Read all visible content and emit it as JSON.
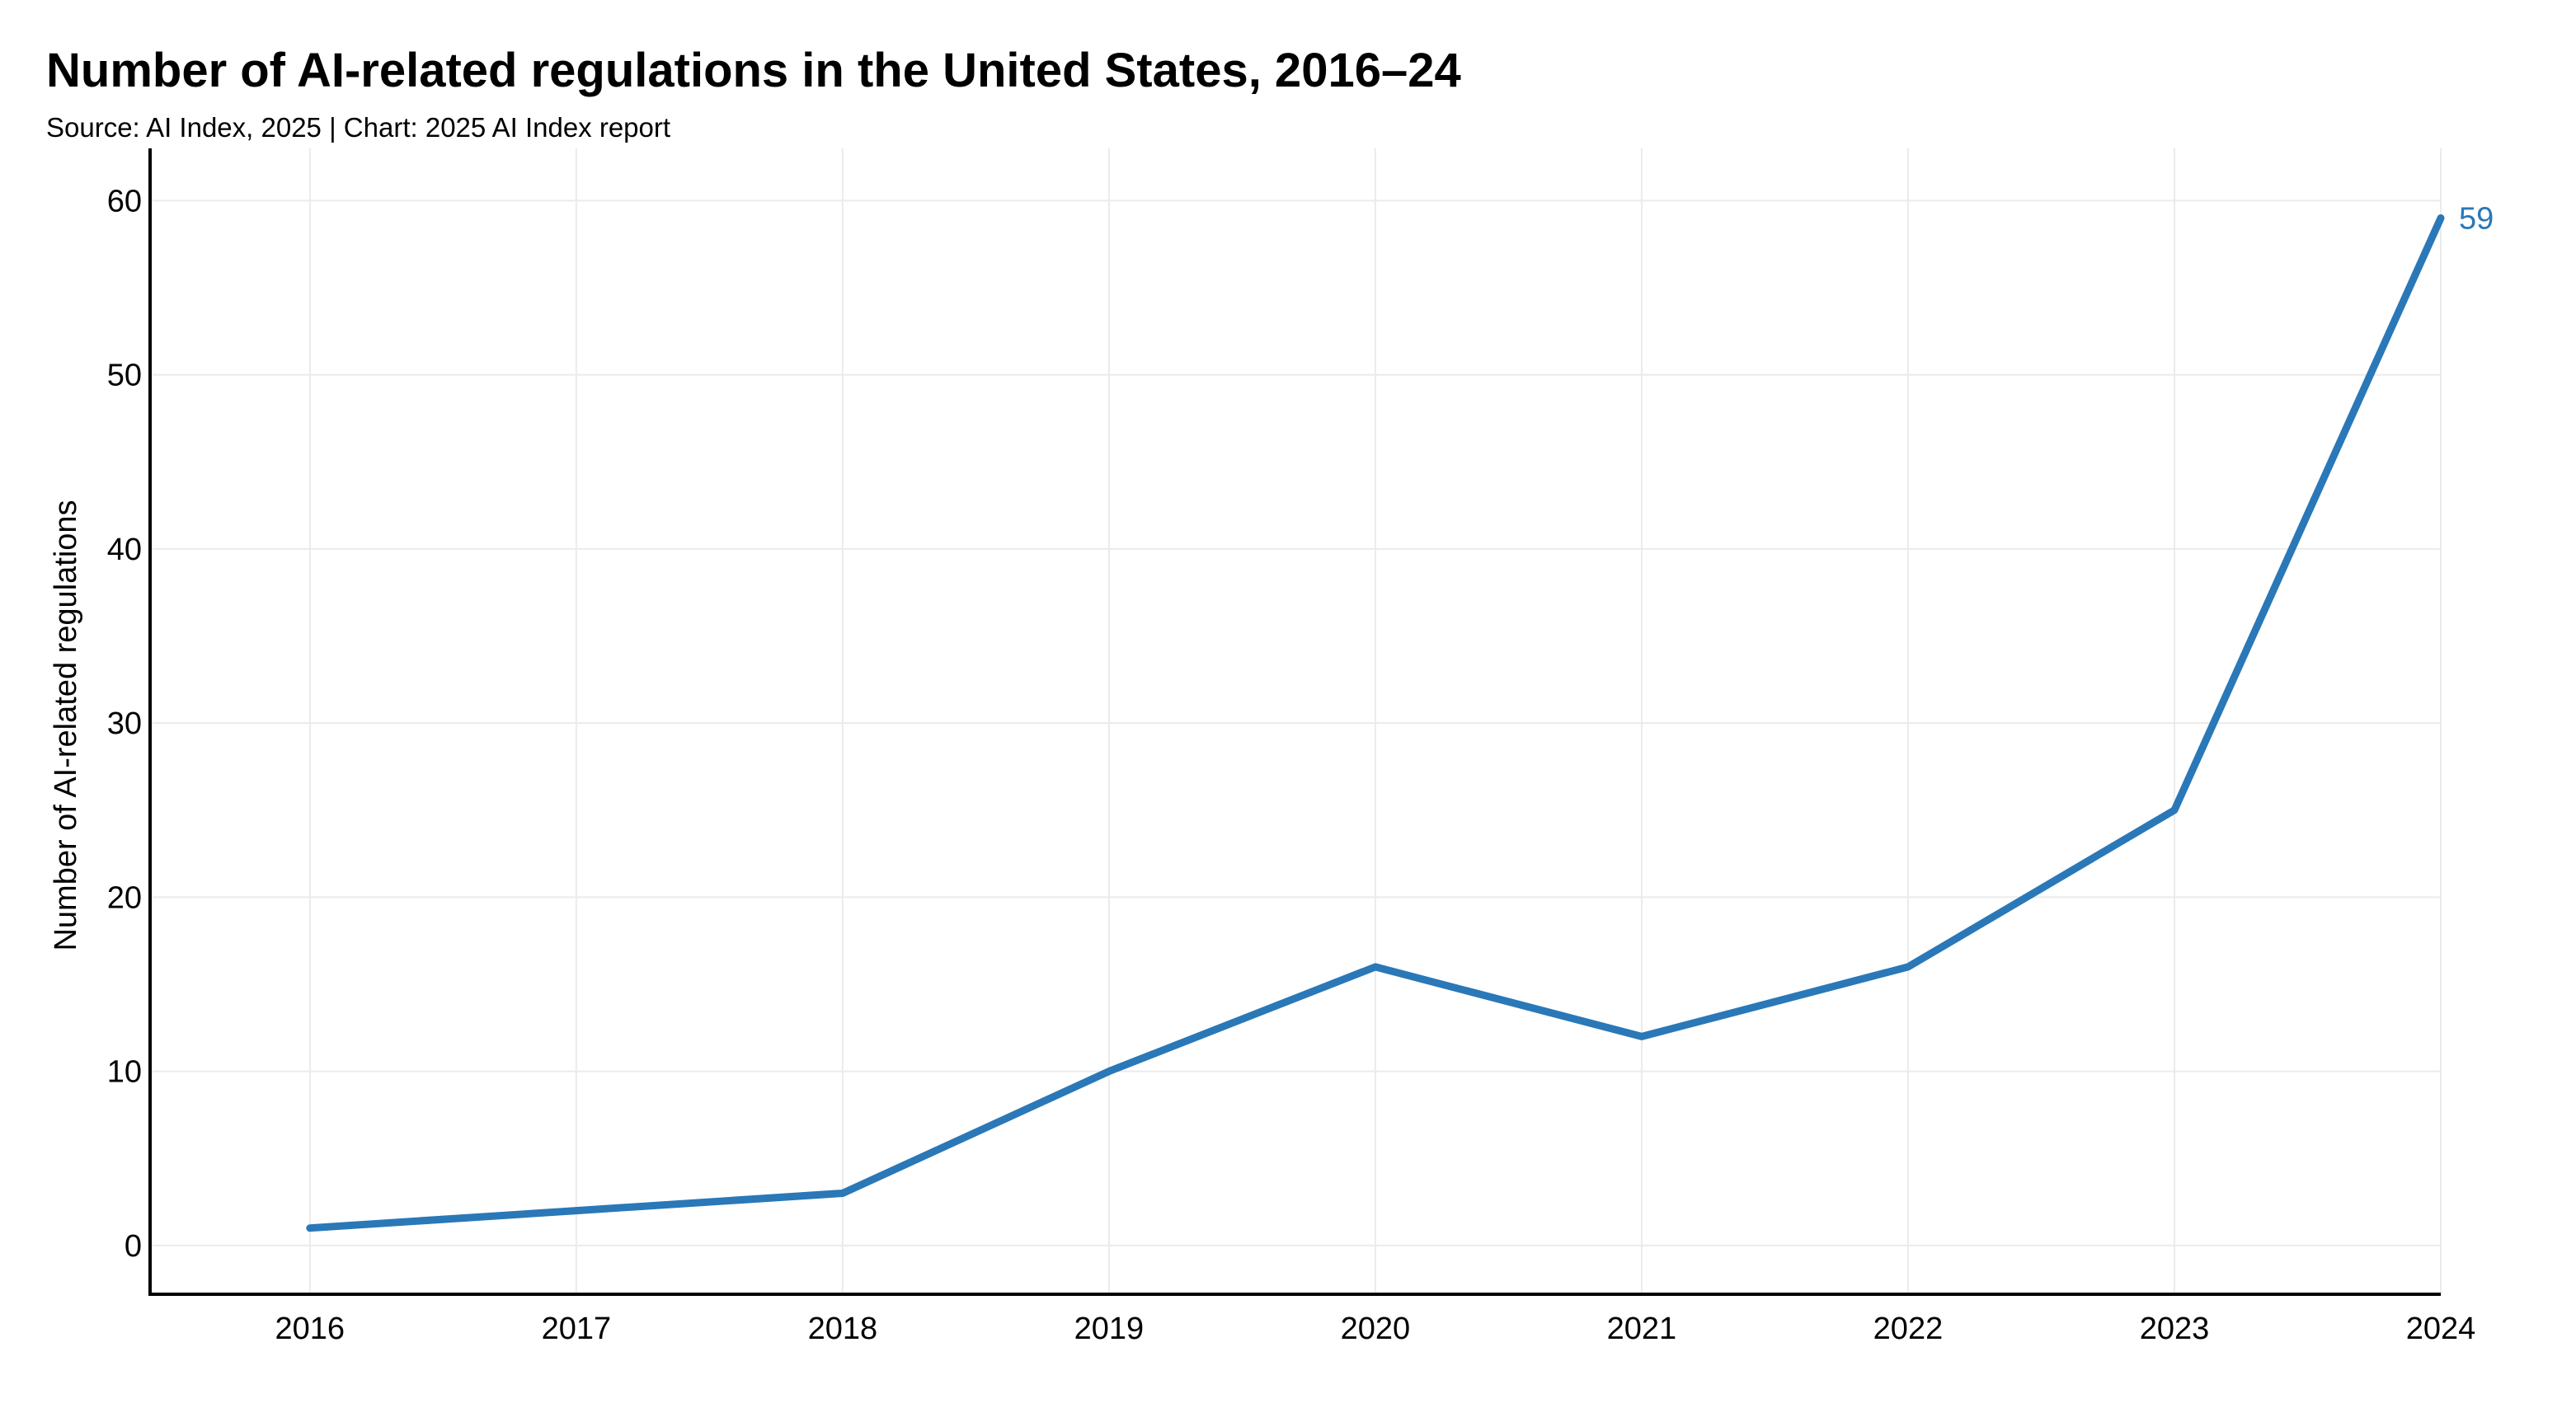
{
  "title": "Number of AI-related regulations in the United States, 2016–24",
  "subtitle": "Source: AI Index, 2025 | Chart: 2025 AI Index report",
  "colors": {
    "series": "#2a78b7",
    "grid": "#ebebeb",
    "axis": "#000000"
  },
  "chart_data": {
    "type": "line",
    "title": "Number of AI-related regulations in the United States, 2016–24",
    "subtitle": "Source: AI Index, 2025 | Chart: 2025 AI Index report",
    "xlabel": "",
    "ylabel": "Number of AI-related regulations",
    "x": [
      2016,
      2017,
      2018,
      2019,
      2020,
      2021,
      2022,
      2023,
      2024
    ],
    "x_tick_labels": [
      "2016",
      "2017",
      "2018",
      "2019",
      "2020",
      "2021",
      "2022",
      "2023",
      "2024"
    ],
    "series": [
      {
        "name": "",
        "values": [
          1,
          2,
          3,
          10,
          16,
          12,
          16,
          25,
          59
        ]
      }
    ],
    "end_label": "59",
    "yticks": [
      0,
      10,
      20,
      30,
      40,
      50,
      60
    ],
    "y_tick_labels": [
      "0",
      "10",
      "20",
      "30",
      "40",
      "50",
      "60"
    ],
    "ylim": [
      -2.8,
      63
    ],
    "xlim": [
      2015.4,
      2024
    ],
    "grid": true,
    "legend": "none"
  }
}
